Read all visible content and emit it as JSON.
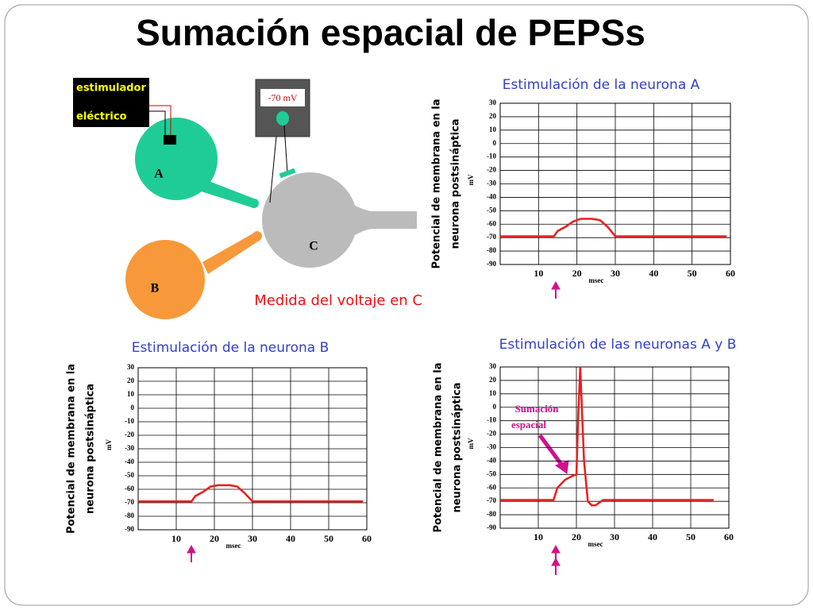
{
  "title": "Sumación espacial de PEPSs",
  "diagram": {
    "stimulator": [
      "estimulador",
      "eléctrico"
    ],
    "meter": "-70 mV",
    "neurons": [
      "A",
      "B",
      "C"
    ],
    "caption": "Medida del voltaje en C"
  },
  "chart_data": [
    {
      "type": "line",
      "title": "Estimulación de la neurona A",
      "ylabel": [
        "Potencial de membrana en la",
        "neurona postsináptica"
      ],
      "yunit": "mV",
      "xlabel": "msec",
      "xlim": [
        0,
        60
      ],
      "ylim": [
        -90,
        30
      ],
      "xticks": [
        10,
        20,
        30,
        40,
        50,
        60
      ],
      "yticks": [
        30,
        20,
        10,
        0,
        -10,
        -20,
        -30,
        -40,
        -50,
        -60,
        -70,
        -80,
        -90
      ],
      "grid": true,
      "series": [
        {
          "color": "#ee1c1c",
          "x": [
            0,
            14,
            15,
            17,
            19,
            21,
            24,
            26,
            28,
            30,
            59
          ],
          "values": [
            -69,
            -69,
            -65,
            -62,
            -58,
            -56,
            -56,
            -57,
            -62,
            -69,
            -69
          ]
        }
      ]
    },
    {
      "type": "line",
      "title": "Estimulación de la neurona B",
      "ylabel": [
        "Potencial de membrana en la",
        "neurona postsináptica"
      ],
      "yunit": "mV",
      "xlabel": "msec",
      "xlim": [
        0,
        60
      ],
      "ylim": [
        -90,
        30
      ],
      "xticks": [
        10,
        20,
        30,
        40,
        50,
        60
      ],
      "yticks": [
        30,
        20,
        10,
        0,
        -10,
        -20,
        -30,
        -40,
        -50,
        -60,
        -70,
        -80,
        -90
      ],
      "grid": true,
      "series": [
        {
          "color": "#ee1c1c",
          "x": [
            0,
            14,
            15,
            17,
            19,
            21,
            24,
            26,
            28,
            30,
            59
          ],
          "values": [
            -69,
            -69,
            -65,
            -62,
            -58,
            -57,
            -57,
            -58,
            -63,
            -69,
            -69
          ]
        }
      ]
    },
    {
      "type": "line",
      "title": "Estimulación de las neuronas A y B",
      "ylabel": [
        "Potencial de membrana en la",
        "neurona postsináptica"
      ],
      "yunit": "mV",
      "xlabel": "msec",
      "xlim": [
        0,
        60
      ],
      "ylim": [
        -90,
        30
      ],
      "xticks": [
        10,
        20,
        30,
        40,
        50,
        60
      ],
      "yticks": [
        30,
        20,
        10,
        0,
        -10,
        -20,
        -30,
        -40,
        -50,
        -60,
        -70,
        -80,
        -90
      ],
      "grid": true,
      "annotation": [
        "Sumación",
        "espacial"
      ],
      "series": [
        {
          "color": "#ee1c1c",
          "x": [
            0,
            14,
            15,
            17,
            19,
            20,
            20.5,
            21,
            22,
            23,
            24,
            25,
            26,
            27,
            56
          ],
          "values": [
            -69,
            -69,
            -60,
            -54,
            -51,
            -50,
            -5,
            30,
            -40,
            -70,
            -73,
            -73,
            -71,
            -69,
            -69
          ]
        }
      ]
    }
  ]
}
